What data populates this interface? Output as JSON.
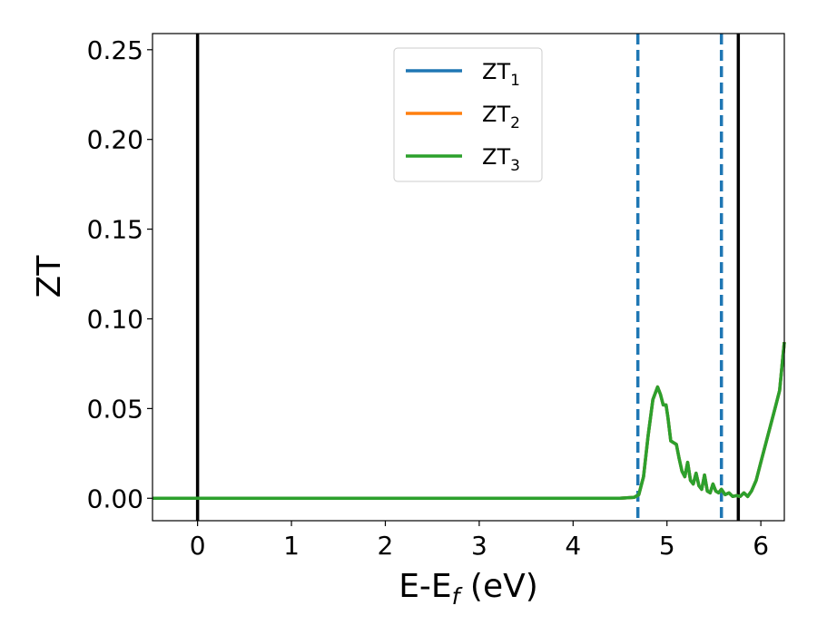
{
  "chart_data": {
    "type": "line",
    "xlabel": "E-E",
    "xlabel_sub": "f",
    "xlabel_unit": " (eV)",
    "ylabel": "ZT",
    "xlim": [
      -0.48,
      6.25
    ],
    "ylim": [
      -0.0125,
      0.259
    ],
    "x_ticks": [
      "0",
      "1",
      "2",
      "3",
      "4",
      "5",
      "6"
    ],
    "y_ticks": [
      "0.00",
      "0.05",
      "0.10",
      "0.15",
      "0.20",
      "0.25"
    ],
    "legend_position": "upper center",
    "vlines": [
      {
        "x": 0.0,
        "style": "solid",
        "color": "#000000"
      },
      {
        "x": 5.76,
        "style": "solid",
        "color": "#000000"
      },
      {
        "x": 4.69,
        "style": "dashed",
        "color": "#1f77b4"
      },
      {
        "x": 5.58,
        "style": "dashed",
        "color": "#1f77b4"
      }
    ],
    "series": [
      {
        "name": "ZT",
        "name_sub": "1",
        "color": "#1f77b4",
        "x": [
          -0.48,
          4.5,
          4.65,
          4.7,
          4.75,
          4.8,
          4.85,
          4.9,
          4.93,
          4.96,
          4.99,
          5.01,
          5.04,
          5.07,
          5.1,
          5.13,
          5.16,
          5.19,
          5.22,
          5.25,
          5.28,
          5.31,
          5.34,
          5.37,
          5.4,
          5.43,
          5.46,
          5.49,
          5.52,
          5.55,
          5.58,
          5.62,
          5.66,
          5.7,
          5.74,
          5.78,
          5.82,
          5.86,
          5.9,
          5.95,
          6.0,
          6.05,
          6.1,
          6.15,
          6.2,
          6.25
        ],
        "y": [
          0.0,
          0.0,
          0.0005,
          0.002,
          0.012,
          0.035,
          0.055,
          0.062,
          0.058,
          0.052,
          0.052,
          0.045,
          0.032,
          0.031,
          0.03,
          0.022,
          0.015,
          0.012,
          0.02,
          0.01,
          0.008,
          0.014,
          0.007,
          0.005,
          0.013,
          0.004,
          0.003,
          0.008,
          0.004,
          0.003,
          0.005,
          0.002,
          0.003,
          0.001,
          0.0015,
          0.001,
          0.003,
          0.001,
          0.004,
          0.01,
          0.02,
          0.03,
          0.04,
          0.05,
          0.06,
          0.087
        ]
      },
      {
        "name": "ZT",
        "name_sub": "2",
        "color": "#ff7f0e",
        "x": [
          -0.48,
          4.5,
          4.65,
          4.7,
          4.75,
          4.8,
          4.85,
          4.9,
          4.93,
          4.96,
          4.99,
          5.01,
          5.04,
          5.07,
          5.1,
          5.13,
          5.16,
          5.19,
          5.22,
          5.25,
          5.28,
          5.31,
          5.34,
          5.37,
          5.4,
          5.43,
          5.46,
          5.49,
          5.52,
          5.55,
          5.58,
          5.62,
          5.66,
          5.7,
          5.74,
          5.78,
          5.82,
          5.86,
          5.9,
          5.95,
          6.0,
          6.05,
          6.1,
          6.15,
          6.2,
          6.25
        ],
        "y": [
          0.0,
          0.0,
          0.0005,
          0.002,
          0.012,
          0.035,
          0.055,
          0.062,
          0.058,
          0.052,
          0.052,
          0.045,
          0.032,
          0.031,
          0.03,
          0.022,
          0.015,
          0.012,
          0.02,
          0.01,
          0.008,
          0.014,
          0.007,
          0.005,
          0.013,
          0.004,
          0.003,
          0.008,
          0.004,
          0.003,
          0.005,
          0.002,
          0.003,
          0.001,
          0.0015,
          0.001,
          0.003,
          0.001,
          0.004,
          0.01,
          0.02,
          0.03,
          0.04,
          0.05,
          0.06,
          0.087
        ]
      },
      {
        "name": "ZT",
        "name_sub": "3",
        "color": "#2ca02c",
        "x": [
          -0.48,
          4.5,
          4.65,
          4.7,
          4.75,
          4.8,
          4.85,
          4.9,
          4.93,
          4.96,
          4.99,
          5.01,
          5.04,
          5.07,
          5.1,
          5.13,
          5.16,
          5.19,
          5.22,
          5.25,
          5.28,
          5.31,
          5.34,
          5.37,
          5.4,
          5.43,
          5.46,
          5.49,
          5.52,
          5.55,
          5.58,
          5.62,
          5.66,
          5.7,
          5.74,
          5.78,
          5.82,
          5.86,
          5.9,
          5.95,
          6.0,
          6.05,
          6.1,
          6.15,
          6.2,
          6.25
        ],
        "y": [
          0.0,
          0.0,
          0.0005,
          0.002,
          0.012,
          0.035,
          0.055,
          0.062,
          0.058,
          0.052,
          0.052,
          0.045,
          0.032,
          0.031,
          0.03,
          0.022,
          0.015,
          0.012,
          0.02,
          0.01,
          0.008,
          0.014,
          0.007,
          0.005,
          0.013,
          0.004,
          0.003,
          0.008,
          0.004,
          0.003,
          0.005,
          0.002,
          0.003,
          0.001,
          0.0015,
          0.001,
          0.003,
          0.001,
          0.004,
          0.01,
          0.02,
          0.03,
          0.04,
          0.05,
          0.06,
          0.087
        ]
      }
    ]
  }
}
